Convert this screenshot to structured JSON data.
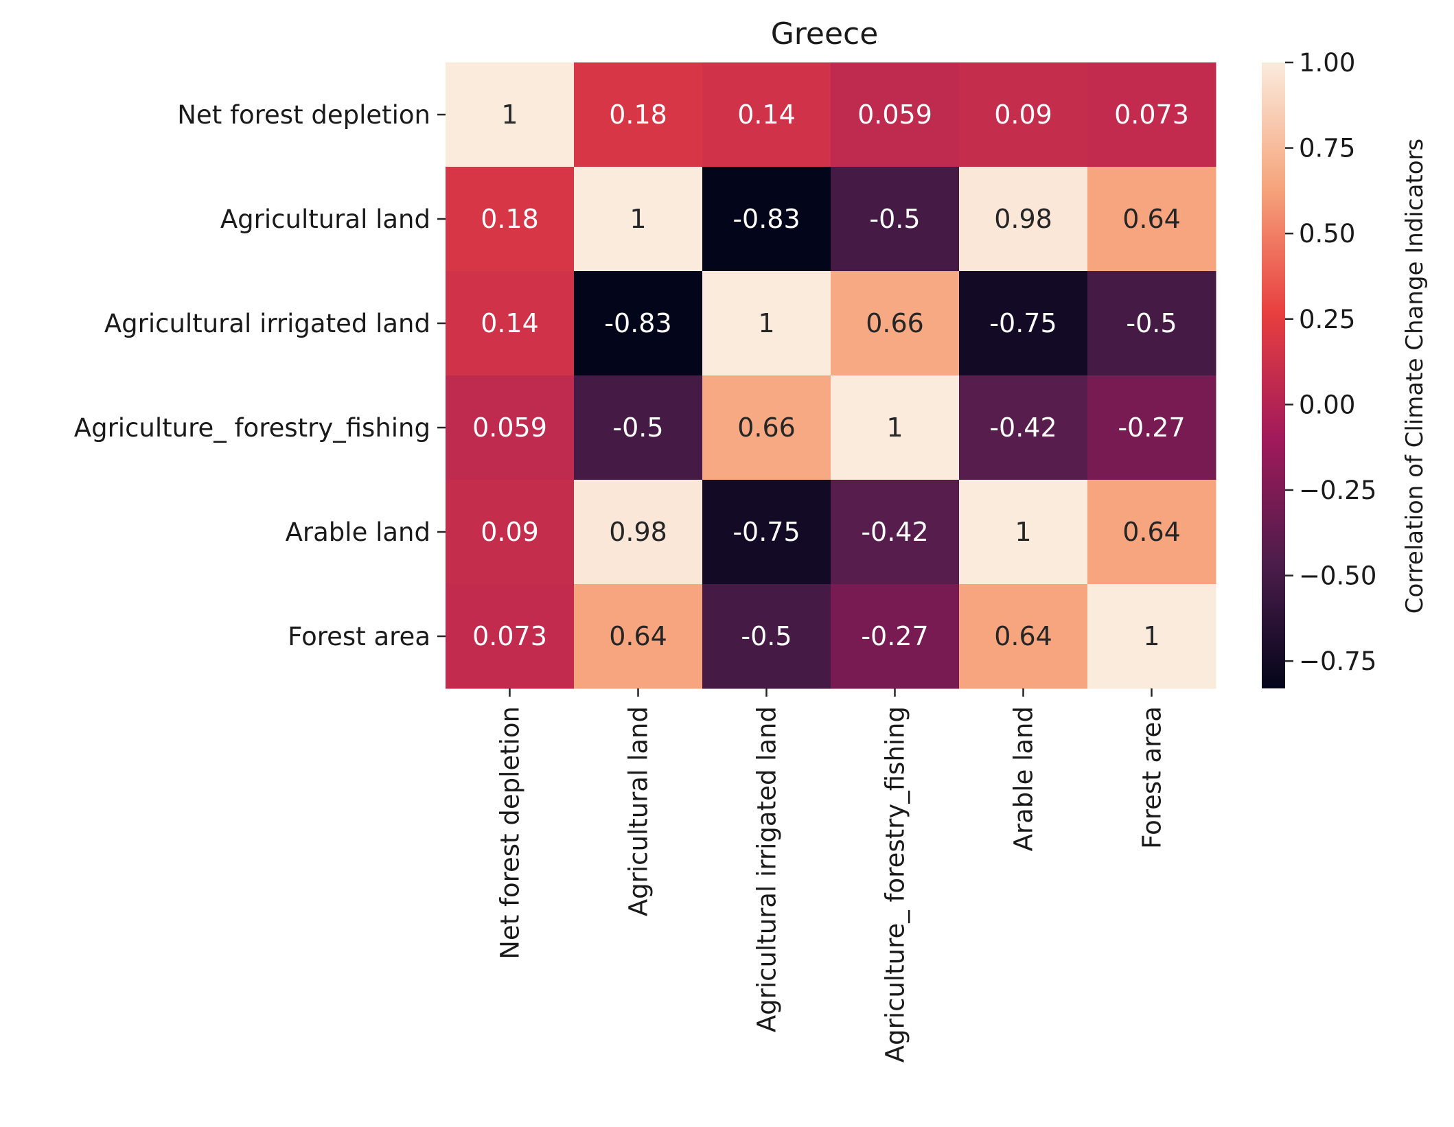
{
  "chart_data": {
    "type": "heatmap",
    "title": "Greece",
    "xlabel": "",
    "ylabel": "",
    "row_labels": [
      "Net forest depletion",
      "Agricultural land",
      "Agricultural irrigated land",
      "Agriculture_ forestry_fishing",
      "Arable land",
      "Forest area"
    ],
    "col_labels": [
      "Net forest depletion",
      "Agricultural land",
      "Agricultural irrigated land",
      "Agriculture_ forestry_fishing",
      "Arable land",
      "Forest area"
    ],
    "values": [
      [
        1,
        0.18,
        0.14,
        0.059,
        0.09,
        0.073
      ],
      [
        0.18,
        1,
        -0.83,
        -0.5,
        0.98,
        0.64
      ],
      [
        0.14,
        -0.83,
        1,
        0.66,
        -0.75,
        -0.5
      ],
      [
        0.059,
        -0.5,
        0.66,
        1,
        -0.42,
        -0.27
      ],
      [
        0.09,
        0.98,
        -0.75,
        -0.42,
        1,
        0.64
      ],
      [
        0.073,
        0.64,
        -0.5,
        -0.27,
        0.64,
        1
      ]
    ],
    "annotations": [
      [
        "1",
        "0.18",
        "0.14",
        "0.059",
        "0.09",
        "0.073"
      ],
      [
        "0.18",
        "1",
        "-0.83",
        "-0.5",
        "0.98",
        "0.64"
      ],
      [
        "0.14",
        "-0.83",
        "1",
        "0.66",
        "-0.75",
        "-0.5"
      ],
      [
        "0.059",
        "-0.5",
        "0.66",
        "1",
        "-0.42",
        "-0.27"
      ],
      [
        "0.09",
        "0.98",
        "-0.75",
        "-0.42",
        "1",
        "0.64"
      ],
      [
        "0.073",
        "0.64",
        "-0.5",
        "-0.27",
        "0.64",
        "1"
      ]
    ],
    "colorbar": {
      "label": "Correlation of Climate Change Indicators",
      "vmin": -0.83,
      "vmax": 1.0,
      "ticks": [
        1.0,
        0.75,
        0.5,
        0.25,
        0.0,
        -0.25,
        -0.5,
        -0.75
      ],
      "tick_labels": [
        "1.00",
        "0.75",
        "0.50",
        "0.25",
        "0.00",
        "−0.25",
        "−0.50",
        "−0.75"
      ],
      "colormap": "rocket",
      "stops": [
        "#03051a",
        "#4c1d4b",
        "#a11a5b",
        "#e83f3f",
        "#f6a47c",
        "#faebdd"
      ]
    }
  }
}
